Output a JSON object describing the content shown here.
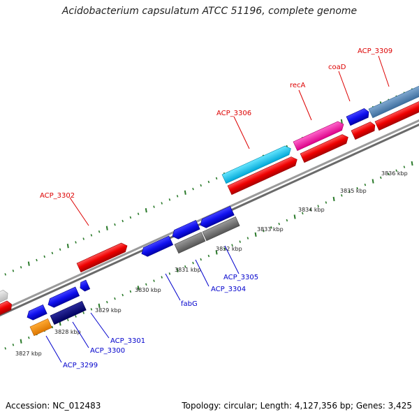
{
  "title": "Acidobacterium capsulatum ATCC 51196, complete genome",
  "footer": {
    "accession": "Accession: NC_012483",
    "summary": "Topology: circular; Length: 4,127,356 bp; Genes: 3,425"
  },
  "colors": {
    "forward_label": "#dd0000",
    "reverse_label": "#0000cc",
    "backbone": "#777777",
    "tick": "#2a7a2a"
  },
  "ticks": [
    {
      "label": "3827 kbp"
    },
    {
      "label": "3828 kbp"
    },
    {
      "label": "3829 kbp"
    },
    {
      "label": "3830 kbp"
    },
    {
      "label": "3831 kbp"
    },
    {
      "label": "3832 kbp"
    },
    {
      "label": "3833 kbp"
    },
    {
      "label": "3834 kbp"
    },
    {
      "label": "3835 kbp"
    },
    {
      "label": "3836 kbp"
    }
  ],
  "gene_labels": [
    {
      "text": "ACP_3302",
      "strand": "forward"
    },
    {
      "text": "ACP_3306",
      "strand": "forward"
    },
    {
      "text": "recA",
      "strand": "forward"
    },
    {
      "text": "coaD",
      "strand": "forward"
    },
    {
      "text": "ACP_3309",
      "strand": "forward"
    },
    {
      "text": "fabG",
      "strand": "reverse"
    },
    {
      "text": "ACP_3305",
      "strand": "reverse"
    },
    {
      "text": "ACP_3304",
      "strand": "reverse"
    },
    {
      "text": "ACP_3301",
      "strand": "reverse"
    },
    {
      "text": "ACP_3300",
      "strand": "reverse"
    },
    {
      "text": "ACP_3299",
      "strand": "reverse"
    }
  ]
}
